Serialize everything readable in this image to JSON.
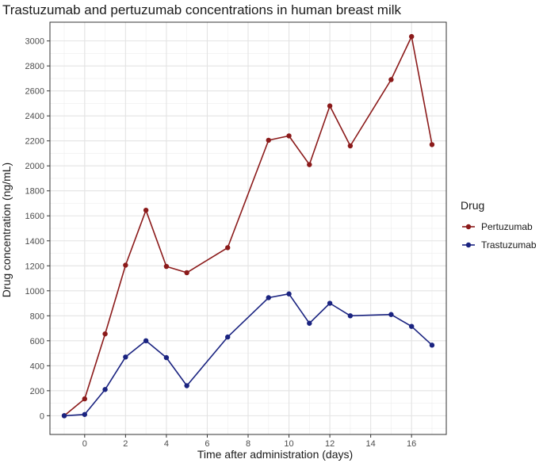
{
  "chart_data": {
    "type": "line",
    "title": "Trastuzumab and pertuzumab concentrations in human breast milk",
    "xlabel": "Time after administration (days)",
    "ylabel": "Drug concentration (ng/mL)",
    "xlim": [
      -1.7,
      17.7
    ],
    "ylim": [
      -150,
      3150
    ],
    "x_ticks": [
      0,
      2,
      4,
      6,
      8,
      10,
      12,
      14,
      16
    ],
    "y_ticks": [
      0,
      200,
      400,
      600,
      800,
      1000,
      1200,
      1400,
      1600,
      1800,
      2000,
      2200,
      2400,
      2600,
      2800,
      3000
    ],
    "grid": true,
    "legend": {
      "title": "Drug",
      "position": "right"
    },
    "series": [
      {
        "name": "Pertuzumab",
        "color": "#8b1a1a",
        "x": [
          -1,
          0,
          1,
          2,
          3,
          4,
          5,
          7,
          9,
          10,
          11,
          12,
          13,
          15,
          16,
          17
        ],
        "y": [
          0,
          135,
          655,
          1205,
          1645,
          1195,
          1145,
          1345,
          2205,
          2240,
          2010,
          2480,
          2160,
          2690,
          3035,
          2170
        ]
      },
      {
        "name": "Trastuzumab",
        "color": "#1a2380",
        "x": [
          -1,
          0,
          1,
          2,
          3,
          4,
          5,
          7,
          9,
          10,
          11,
          12,
          13,
          15,
          16,
          17
        ],
        "y": [
          0,
          10,
          210,
          470,
          600,
          465,
          240,
          630,
          945,
          975,
          740,
          900,
          800,
          810,
          715,
          565
        ]
      }
    ]
  }
}
